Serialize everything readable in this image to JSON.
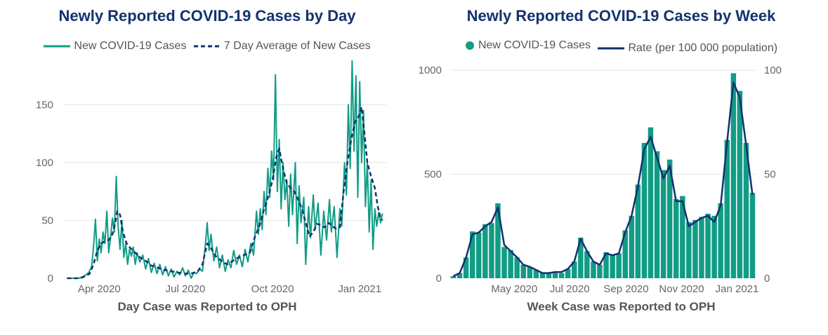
{
  "colors": {
    "teal": "#119c85",
    "navy": "#14306f",
    "grid": "#e6e6e6"
  },
  "chart_data": [
    {
      "type": "line",
      "title": "Newly Reported COVID-19 Cases by Day",
      "xlabel": "Day Case was Reported to OPH",
      "ylabel": "",
      "ylim": [
        0,
        180
      ],
      "yticks": [
        0,
        50,
        100,
        150
      ],
      "xticks": [
        "Apr 2020",
        "Jul 2020",
        "Oct 2020",
        "Jan 2021"
      ],
      "legend": "top-center",
      "grid": true,
      "series_keypoints_note_free": true,
      "series": [
        {
          "name": "New COVID-19 Cases",
          "style": "solid",
          "color": "#119c85",
          "points": [
            [
              "2020-02-27",
              0
            ],
            [
              "2020-03-10",
              0
            ],
            [
              "2020-03-14",
              1
            ],
            [
              "2020-03-18",
              3
            ],
            [
              "2020-03-21",
              5
            ],
            [
              "2020-03-24",
              10
            ],
            [
              "2020-03-26",
              27
            ],
            [
              "2020-03-28",
              51
            ],
            [
              "2020-03-30",
              15
            ],
            [
              "2020-04-01",
              34
            ],
            [
              "2020-04-03",
              22
            ],
            [
              "2020-04-05",
              40
            ],
            [
              "2020-04-07",
              30
            ],
            [
              "2020-04-09",
              58
            ],
            [
              "2020-04-11",
              22
            ],
            [
              "2020-04-13",
              35
            ],
            [
              "2020-04-15",
              52
            ],
            [
              "2020-04-17",
              40
            ],
            [
              "2020-04-19",
              88
            ],
            [
              "2020-04-21",
              45
            ],
            [
              "2020-04-23",
              25
            ],
            [
              "2020-04-25",
              50
            ],
            [
              "2020-04-27",
              18
            ],
            [
              "2020-04-29",
              30
            ],
            [
              "2020-05-01",
              12
            ],
            [
              "2020-05-03",
              25
            ],
            [
              "2020-05-05",
              19
            ],
            [
              "2020-05-07",
              27
            ],
            [
              "2020-05-09",
              12
            ],
            [
              "2020-05-11",
              22
            ],
            [
              "2020-05-14",
              14
            ],
            [
              "2020-05-17",
              20
            ],
            [
              "2020-05-20",
              8
            ],
            [
              "2020-05-23",
              17
            ],
            [
              "2020-05-26",
              5
            ],
            [
              "2020-05-29",
              13
            ],
            [
              "2020-06-01",
              4
            ],
            [
              "2020-06-04",
              12
            ],
            [
              "2020-06-07",
              3
            ],
            [
              "2020-06-10",
              10
            ],
            [
              "2020-06-13",
              2
            ],
            [
              "2020-06-16",
              8
            ],
            [
              "2020-06-19",
              1
            ],
            [
              "2020-06-22",
              6
            ],
            [
              "2020-06-25",
              3
            ],
            [
              "2020-06-28",
              9
            ],
            [
              "2020-07-01",
              2
            ],
            [
              "2020-07-04",
              7
            ],
            [
              "2020-07-07",
              0
            ],
            [
              "2020-07-10",
              5
            ],
            [
              "2020-07-13",
              4
            ],
            [
              "2020-07-16",
              8
            ],
            [
              "2020-07-19",
              6
            ],
            [
              "2020-07-22",
              28
            ],
            [
              "2020-07-24",
              48
            ],
            [
              "2020-07-26",
              24
            ],
            [
              "2020-07-28",
              38
            ],
            [
              "2020-07-31",
              15
            ],
            [
              "2020-08-03",
              27
            ],
            [
              "2020-08-06",
              9
            ],
            [
              "2020-08-09",
              20
            ],
            [
              "2020-08-12",
              6
            ],
            [
              "2020-08-15",
              16
            ],
            [
              "2020-08-18",
              9
            ],
            [
              "2020-08-21",
              24
            ],
            [
              "2020-08-24",
              12
            ],
            [
              "2020-08-27",
              20
            ],
            [
              "2020-08-30",
              10
            ],
            [
              "2020-09-02",
              25
            ],
            [
              "2020-09-05",
              14
            ],
            [
              "2020-09-08",
              30
            ],
            [
              "2020-09-11",
              20
            ],
            [
              "2020-09-14",
              58
            ],
            [
              "2020-09-16",
              38
            ],
            [
              "2020-09-18",
              60
            ],
            [
              "2020-09-20",
              42
            ],
            [
              "2020-09-22",
              75
            ],
            [
              "2020-09-24",
              55
            ],
            [
              "2020-09-26",
              95
            ],
            [
              "2020-09-28",
              70
            ],
            [
              "2020-09-30",
              110
            ],
            [
              "2020-10-02",
              85
            ],
            [
              "2020-10-04",
              176
            ],
            [
              "2020-10-06",
              75
            ],
            [
              "2020-10-08",
              120
            ],
            [
              "2020-10-10",
              60
            ],
            [
              "2020-10-12",
              100
            ],
            [
              "2020-10-14",
              68
            ],
            [
              "2020-10-16",
              85
            ],
            [
              "2020-10-18",
              45
            ],
            [
              "2020-10-20",
              90
            ],
            [
              "2020-10-22",
              55
            ],
            [
              "2020-10-25",
              100
            ],
            [
              "2020-10-27",
              30
            ],
            [
              "2020-10-29",
              80
            ],
            [
              "2020-10-31",
              48
            ],
            [
              "2020-11-03",
              70
            ],
            [
              "2020-11-05",
              12
            ],
            [
              "2020-11-08",
              62
            ],
            [
              "2020-11-10",
              35
            ],
            [
              "2020-11-13",
              72
            ],
            [
              "2020-11-15",
              42
            ],
            [
              "2020-11-18",
              65
            ],
            [
              "2020-11-21",
              20
            ],
            [
              "2020-11-24",
              58
            ],
            [
              "2020-11-27",
              33
            ],
            [
              "2020-11-30",
              68
            ],
            [
              "2020-12-02",
              40
            ],
            [
              "2020-12-05",
              62
            ],
            [
              "2020-12-08",
              18
            ],
            [
              "2020-12-11",
              60
            ],
            [
              "2020-12-13",
              45
            ],
            [
              "2020-12-16",
              100
            ],
            [
              "2020-12-18",
              72
            ],
            [
              "2020-12-20",
              150
            ],
            [
              "2020-12-22",
              95
            ],
            [
              "2020-12-24",
              188
            ],
            [
              "2020-12-26",
              110
            ],
            [
              "2020-12-28",
              175
            ],
            [
              "2020-12-30",
              70
            ],
            [
              "2021-01-01",
              170
            ],
            [
              "2021-01-03",
              100
            ],
            [
              "2021-01-05",
              145
            ],
            [
              "2021-01-07",
              62
            ],
            [
              "2021-01-09",
              100
            ],
            [
              "2021-01-11",
              40
            ],
            [
              "2021-01-13",
              85
            ],
            [
              "2021-01-15",
              25
            ],
            [
              "2021-01-17",
              60
            ],
            [
              "2021-01-19",
              45
            ],
            [
              "2021-01-21",
              57
            ],
            [
              "2021-01-23",
              48
            ],
            [
              "2021-01-25",
              56
            ]
          ]
        },
        {
          "name": "7 Day Average of New Cases",
          "style": "dashed",
          "color": "#14306f",
          "points": [
            [
              "2020-02-27",
              0
            ],
            [
              "2020-03-12",
              0
            ],
            [
              "2020-03-18",
              2
            ],
            [
              "2020-03-22",
              4
            ],
            [
              "2020-03-26",
              12
            ],
            [
              "2020-03-30",
              24
            ],
            [
              "2020-04-03",
              30
            ],
            [
              "2020-04-07",
              32
            ],
            [
              "2020-04-11",
              33
            ],
            [
              "2020-04-15",
              38
            ],
            [
              "2020-04-18",
              48
            ],
            [
              "2020-04-20",
              58
            ],
            [
              "2020-04-23",
              55
            ],
            [
              "2020-04-26",
              40
            ],
            [
              "2020-04-30",
              30
            ],
            [
              "2020-05-04",
              26
            ],
            [
              "2020-05-09",
              22
            ],
            [
              "2020-05-14",
              18
            ],
            [
              "2020-05-20",
              15
            ],
            [
              "2020-05-26",
              11
            ],
            [
              "2020-06-02",
              9
            ],
            [
              "2020-06-09",
              7
            ],
            [
              "2020-06-16",
              6
            ],
            [
              "2020-06-23",
              5
            ],
            [
              "2020-06-30",
              4
            ],
            [
              "2020-07-07",
              4
            ],
            [
              "2020-07-14",
              6
            ],
            [
              "2020-07-19",
              12
            ],
            [
              "2020-07-24",
              30
            ],
            [
              "2020-07-28",
              26
            ],
            [
              "2020-08-02",
              19
            ],
            [
              "2020-08-08",
              15
            ],
            [
              "2020-08-14",
              12
            ],
            [
              "2020-08-20",
              15
            ],
            [
              "2020-08-26",
              18
            ],
            [
              "2020-09-01",
              20
            ],
            [
              "2020-09-07",
              22
            ],
            [
              "2020-09-12",
              35
            ],
            [
              "2020-09-17",
              45
            ],
            [
              "2020-09-22",
              60
            ],
            [
              "2020-09-27",
              72
            ],
            [
              "2020-10-01",
              85
            ],
            [
              "2020-10-05",
              105
            ],
            [
              "2020-10-08",
              112
            ],
            [
              "2020-10-12",
              95
            ],
            [
              "2020-10-16",
              82
            ],
            [
              "2020-10-20",
              78
            ],
            [
              "2020-10-24",
              75
            ],
            [
              "2020-10-28",
              68
            ],
            [
              "2020-11-01",
              60
            ],
            [
              "2020-11-05",
              48
            ],
            [
              "2020-11-09",
              36
            ],
            [
              "2020-11-13",
              40
            ],
            [
              "2020-11-17",
              47
            ],
            [
              "2020-11-21",
              46
            ],
            [
              "2020-11-25",
              44
            ],
            [
              "2020-11-29",
              48
            ],
            [
              "2020-12-03",
              45
            ],
            [
              "2020-12-07",
              43
            ],
            [
              "2020-12-11",
              44
            ],
            [
              "2020-12-15",
              75
            ],
            [
              "2020-12-19",
              100
            ],
            [
              "2020-12-23",
              120
            ],
            [
              "2020-12-27",
              135
            ],
            [
              "2020-12-31",
              140
            ],
            [
              "2021-01-03",
              148
            ],
            [
              "2021-01-06",
              125
            ],
            [
              "2021-01-09",
              100
            ],
            [
              "2021-01-13",
              88
            ],
            [
              "2021-01-17",
              78
            ],
            [
              "2021-01-20",
              62
            ],
            [
              "2021-01-23",
              52
            ],
            [
              "2021-01-25",
              50
            ]
          ]
        }
      ]
    },
    {
      "type": "bar",
      "title": "Newly Reported COVID-19 Cases by Week",
      "xlabel": "Week Case was Reported to OPH",
      "ylabel": "",
      "ylim": [
        0,
        1000
      ],
      "yticks": [
        0,
        500,
        1000
      ],
      "y2lim": [
        0,
        100
      ],
      "y2ticks": [
        0,
        50,
        100
      ],
      "xticks": [
        "May 2020",
        "Jul 2020",
        "Sep 2020",
        "Nov 2020",
        "Jan 2021"
      ],
      "legend": "top-center",
      "grid": true,
      "weeks_start": "2020-02-24",
      "series": [
        {
          "name": "New COVID-19 Cases",
          "kind": "bar",
          "color": "#119c85",
          "values": [
            10,
            25,
            100,
            225,
            220,
            260,
            265,
            360,
            150,
            135,
            100,
            65,
            55,
            40,
            25,
            25,
            30,
            25,
            45,
            80,
            195,
            130,
            80,
            65,
            125,
            115,
            120,
            230,
            300,
            450,
            650,
            725,
            610,
            520,
            570,
            380,
            395,
            270,
            280,
            295,
            310,
            300,
            360,
            665,
            985,
            900,
            650,
            410
          ]
        },
        {
          "name": "Rate (per 100 000 population)",
          "kind": "line",
          "axis": "right",
          "color": "#14306f",
          "values": [
            1,
            2.5,
            10,
            21,
            22,
            25,
            27,
            34,
            16,
            13,
            10,
            6.5,
            5.5,
            4,
            2.5,
            2.5,
            3,
            3,
            4.5,
            8,
            19,
            13,
            8,
            6.5,
            12,
            11,
            12,
            22,
            30,
            44,
            62,
            68,
            58,
            48,
            54,
            37,
            37,
            25,
            27,
            29,
            30,
            27,
            35,
            65,
            94,
            87,
            64,
            40
          ]
        }
      ]
    }
  ]
}
